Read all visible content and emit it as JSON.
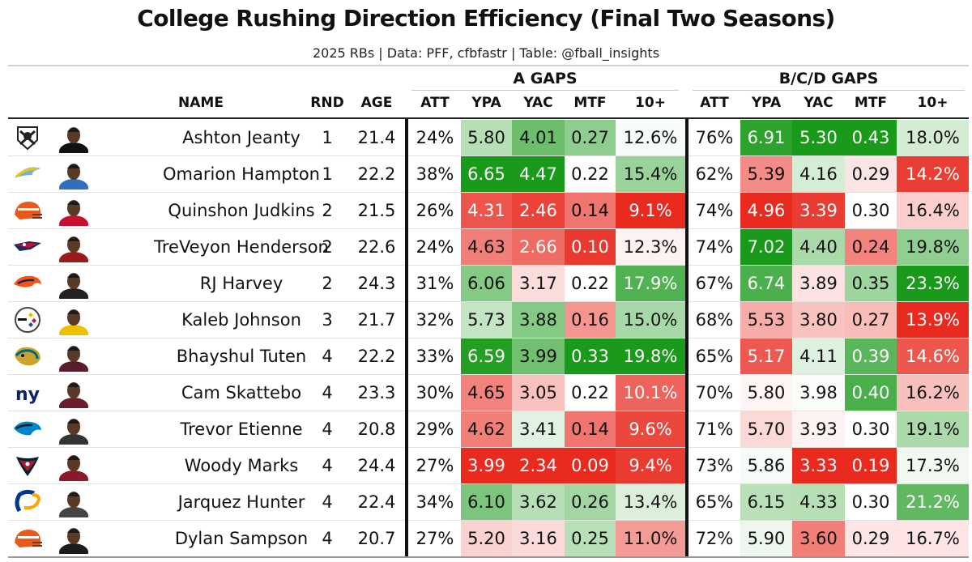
{
  "title": "College Rushing Direction Efficiency (Final Two Seasons)",
  "subtitle": "2025 RBs | Data: PFF, cfbfastr | Table: @fball_insights",
  "groups": {
    "a_gaps": "A GAPS",
    "bcd_gaps": "B/C/D GAPS"
  },
  "columns": {
    "name": "NAME",
    "rnd": "RND",
    "age": "AGE",
    "a_att": "ATT",
    "a_ypa": "YPA",
    "a_yac": "YAC",
    "a_mtf": "MTF",
    "a_10": "10+",
    "b_att": "ATT",
    "b_ypa": "YPA",
    "b_yac": "YAC",
    "b_mtf": "MTF",
    "b_10": "10+"
  },
  "colors": {
    "best": "#1a9a1a",
    "worst": "#e82a1f",
    "neutral": "#ffffff"
  },
  "chart_data": {
    "type": "table",
    "rows": [
      {
        "team": "raiders-logo",
        "name": "Ashton Jeanty",
        "rnd": "1",
        "age": "21.4",
        "a_att": "24%",
        "a_ypa": "5.80",
        "a_yac": "4.01",
        "a_mtf": "0.27",
        "a_10": "12.6%",
        "b_att": "76%",
        "b_ypa": "6.91",
        "b_yac": "5.30",
        "b_mtf": "0.43",
        "b_10": "18.0%"
      },
      {
        "team": "chargers-logo",
        "name": "Omarion Hampton",
        "rnd": "1",
        "age": "22.2",
        "a_att": "38%",
        "a_ypa": "6.65",
        "a_yac": "4.47",
        "a_mtf": "0.22",
        "a_10": "15.4%",
        "b_att": "62%",
        "b_ypa": "5.39",
        "b_yac": "4.16",
        "b_mtf": "0.29",
        "b_10": "14.2%"
      },
      {
        "team": "browns-logo",
        "name": "Quinshon Judkins",
        "rnd": "2",
        "age": "21.5",
        "a_att": "26%",
        "a_ypa": "4.31",
        "a_yac": "2.46",
        "a_mtf": "0.14",
        "a_10": "9.1%",
        "b_att": "74%",
        "b_ypa": "4.96",
        "b_yac": "3.39",
        "b_mtf": "0.30",
        "b_10": "16.4%"
      },
      {
        "team": "patriots-logo",
        "name": "TreVeyon Henderson",
        "rnd": "2",
        "age": "22.6",
        "a_att": "24%",
        "a_ypa": "4.63",
        "a_yac": "2.66",
        "a_mtf": "0.10",
        "a_10": "12.3%",
        "b_att": "74%",
        "b_ypa": "7.02",
        "b_yac": "4.40",
        "b_mtf": "0.24",
        "b_10": "19.8%"
      },
      {
        "team": "broncos-logo",
        "name": "RJ Harvey",
        "rnd": "2",
        "age": "24.3",
        "a_att": "31%",
        "a_ypa": "6.06",
        "a_yac": "3.17",
        "a_mtf": "0.22",
        "a_10": "17.9%",
        "b_att": "67%",
        "b_ypa": "6.74",
        "b_yac": "3.89",
        "b_mtf": "0.35",
        "b_10": "23.3%"
      },
      {
        "team": "steelers-logo",
        "name": "Kaleb Johnson",
        "rnd": "3",
        "age": "21.7",
        "a_att": "32%",
        "a_ypa": "5.73",
        "a_yac": "3.88",
        "a_mtf": "0.16",
        "a_10": "15.0%",
        "b_att": "68%",
        "b_ypa": "5.53",
        "b_yac": "3.80",
        "b_mtf": "0.27",
        "b_10": "13.9%"
      },
      {
        "team": "jaguars-logo",
        "name": "Bhayshul Tuten",
        "rnd": "4",
        "age": "22.2",
        "a_att": "33%",
        "a_ypa": "6.59",
        "a_yac": "3.99",
        "a_mtf": "0.33",
        "a_10": "19.8%",
        "b_att": "65%",
        "b_ypa": "5.17",
        "b_yac": "4.11",
        "b_mtf": "0.39",
        "b_10": "14.6%"
      },
      {
        "team": "giants-logo",
        "name": "Cam Skattebo",
        "rnd": "4",
        "age": "23.3",
        "a_att": "30%",
        "a_ypa": "4.65",
        "a_yac": "3.05",
        "a_mtf": "0.22",
        "a_10": "10.1%",
        "b_att": "70%",
        "b_ypa": "5.80",
        "b_yac": "3.98",
        "b_mtf": "0.40",
        "b_10": "16.2%"
      },
      {
        "team": "panthers-logo",
        "name": "Trevor Etienne",
        "rnd": "4",
        "age": "20.8",
        "a_att": "29%",
        "a_ypa": "4.62",
        "a_yac": "3.41",
        "a_mtf": "0.14",
        "a_10": "9.6%",
        "b_att": "71%",
        "b_ypa": "5.70",
        "b_yac": "3.93",
        "b_mtf": "0.30",
        "b_10": "19.1%"
      },
      {
        "team": "texans-logo",
        "name": "Woody Marks",
        "rnd": "4",
        "age": "24.4",
        "a_att": "27%",
        "a_ypa": "3.99",
        "a_yac": "2.34",
        "a_mtf": "0.09",
        "a_10": "9.4%",
        "b_att": "73%",
        "b_ypa": "5.86",
        "b_yac": "3.33",
        "b_mtf": "0.19",
        "b_10": "17.3%"
      },
      {
        "team": "rams-logo",
        "name": "Jarquez Hunter",
        "rnd": "4",
        "age": "22.4",
        "a_att": "34%",
        "a_ypa": "6.10",
        "a_yac": "3.62",
        "a_mtf": "0.26",
        "a_10": "13.4%",
        "b_att": "65%",
        "b_ypa": "6.15",
        "b_yac": "4.33",
        "b_mtf": "0.30",
        "b_10": "21.2%"
      },
      {
        "team": "browns-logo",
        "name": "Dylan Sampson",
        "rnd": "4",
        "age": "20.7",
        "a_att": "27%",
        "a_ypa": "5.20",
        "a_yac": "3.16",
        "a_mtf": "0.25",
        "a_10": "11.0%",
        "b_att": "72%",
        "b_ypa": "5.90",
        "b_yac": "3.60",
        "b_mtf": "0.29",
        "b_10": "16.7%"
      }
    ]
  }
}
